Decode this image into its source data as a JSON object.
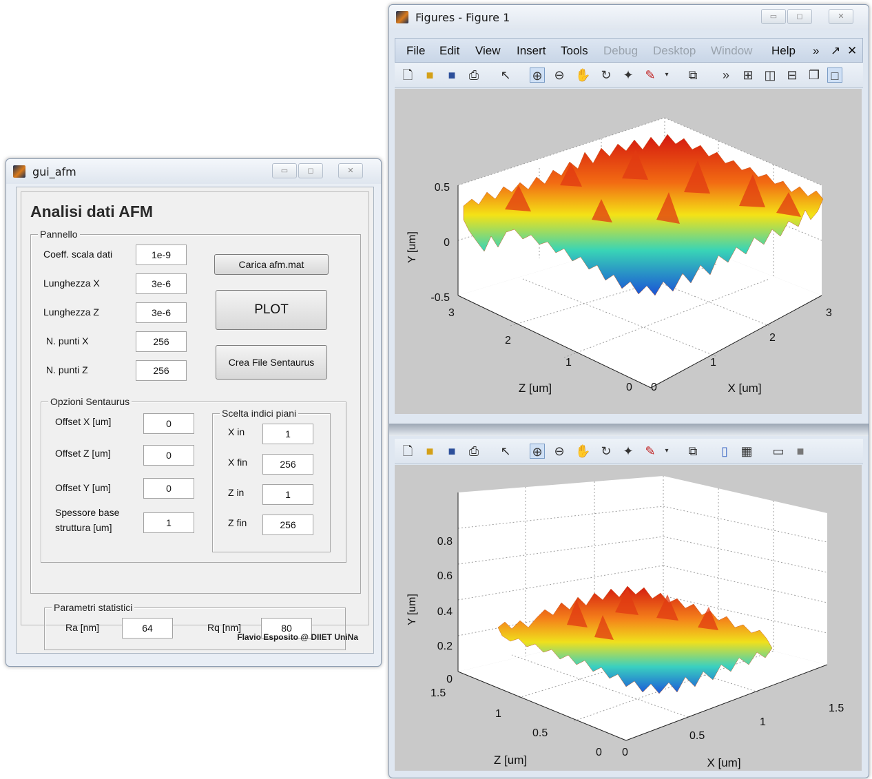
{
  "gui_window": {
    "title": "gui_afm",
    "heading": "Analisi dati AFM",
    "pannello": {
      "title": "Pannello",
      "fields": [
        {
          "label": "Coeff. scala dati",
          "value": "1e-9"
        },
        {
          "label": "Lunghezza X",
          "value": "3e-6"
        },
        {
          "label": "Lunghezza Z",
          "value": "3e-6"
        },
        {
          "label": "N. punti X",
          "value": "256"
        },
        {
          "label": "N. punti Z",
          "value": "256"
        }
      ],
      "buttons": {
        "load": "Carica afm.mat",
        "plot": "PLOT",
        "sentaurus": "Crea File Sentaurus"
      }
    },
    "opzioni": {
      "title": "Opzioni Sentaurus",
      "fields": [
        {
          "label": "Offset X [um]",
          "value": "0"
        },
        {
          "label": "Offset Z [um]",
          "value": "0"
        },
        {
          "label": "Offset Y [um]",
          "value": "0"
        },
        {
          "label1": "Spessore base",
          "label2": "struttura [um]",
          "value": "1"
        }
      ],
      "indici": {
        "title": "Scelta indici piani",
        "fields": [
          {
            "label": "X in",
            "value": "1"
          },
          {
            "label": "X fin",
            "value": "256"
          },
          {
            "label": "Z in",
            "value": "1"
          },
          {
            "label": "Z fin",
            "value": "256"
          }
        ]
      }
    },
    "parametri": {
      "title": "Parametri statistici",
      "ra_label": "Ra [nm]",
      "ra_value": "64",
      "rq_label": "Rq [nm]",
      "rq_value": "80"
    },
    "credit": "Flavio Esposito @ DIIET UniNa"
  },
  "figure_window": {
    "title": "Figures - Figure 1",
    "menus": [
      {
        "label": "File",
        "enabled": true
      },
      {
        "label": "Edit",
        "enabled": true
      },
      {
        "label": "View",
        "enabled": true
      },
      {
        "label": "Insert",
        "enabled": true
      },
      {
        "label": "Tools",
        "enabled": true
      },
      {
        "label": "Debug",
        "enabled": false
      },
      {
        "label": "Desktop",
        "enabled": false
      },
      {
        "label": "Window",
        "enabled": false
      },
      {
        "label": "Help",
        "enabled": true
      }
    ],
    "plot1": {
      "y_ticks": [
        "0.5",
        "0",
        "-0.5"
      ],
      "z_ticks": [
        "3",
        "2",
        "1",
        "0"
      ],
      "x_ticks": [
        "0",
        "1",
        "2",
        "3"
      ],
      "ylabel": "Y [um]",
      "zlabel": "Z [um]",
      "xlabel": "X [um]"
    },
    "plot2": {
      "y_ticks": [
        "0.8",
        "0.6",
        "0.4",
        "0.2",
        "0"
      ],
      "z_ticks": [
        "1.5",
        "1",
        "0.5",
        "0"
      ],
      "x_ticks": [
        "0",
        "0.5",
        "1",
        "1.5"
      ],
      "ylabel": "Y [um]",
      "zlabel": "Z [um]",
      "xlabel": "X [um]"
    }
  },
  "colors": {
    "surface_high": "#e8400f",
    "surface_mid": "#f6d21d",
    "surface_low": "#1f8fe0"
  }
}
